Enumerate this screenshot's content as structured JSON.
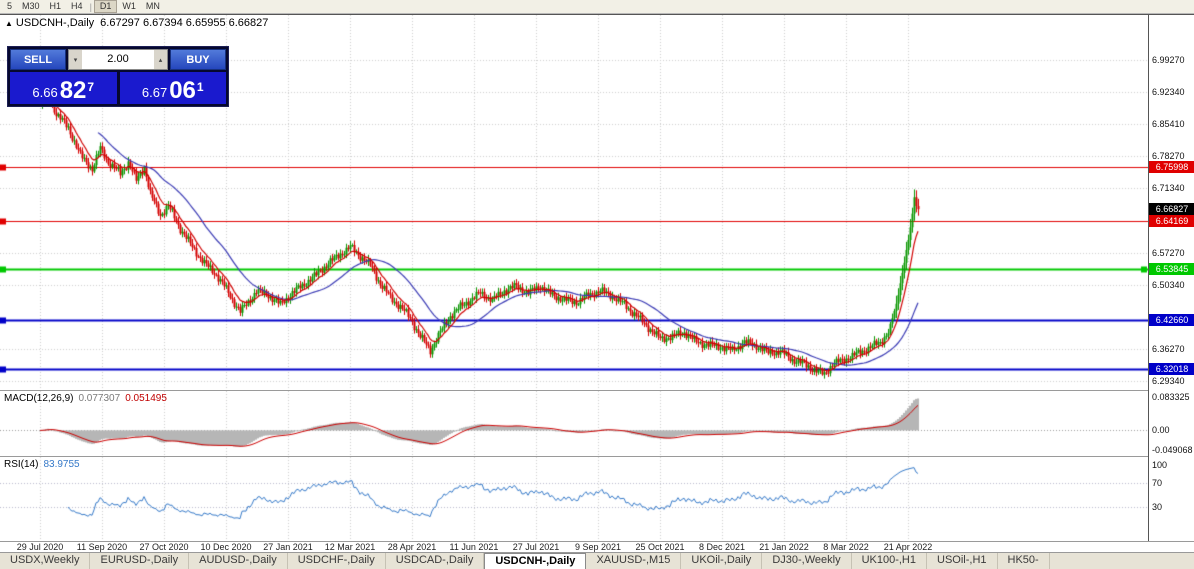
{
  "toolbar": {
    "timeframes": [
      "5",
      "M30",
      "H1",
      "H4",
      "D1",
      "W1",
      "MN"
    ],
    "active": "D1",
    "separator_index": 4
  },
  "chart": {
    "title_marker": "▲",
    "symbol": "USDCNH-,Daily",
    "ohlc_text": "6.67297 6.67394 6.65955 6.66827"
  },
  "trade_panel": {
    "sell_label": "SELL",
    "buy_label": "BUY",
    "volume": "2.00",
    "sell_price": {
      "main": "6.66",
      "big": "82",
      "sup": "7"
    },
    "buy_price": {
      "main": "6.67",
      "big": "06",
      "sup": "1"
    }
  },
  "price_axis": {
    "ticks": [
      "6.99270",
      "6.92340",
      "6.85410",
      "6.78270",
      "6.71340",
      "6.57270",
      "6.50340",
      "6.36270",
      "6.29340"
    ]
  },
  "levels": [
    {
      "price": 6.75998,
      "label": "6.75998",
      "color": "#e00000",
      "width": 1,
      "right_marker": false
    },
    {
      "price": 6.64169,
      "label": "6.64169",
      "color": "#e00000",
      "width": 1,
      "right_marker": false
    },
    {
      "price": 6.53845,
      "label": "6.53845",
      "color": "#00c800",
      "width": 2,
      "right_marker": true
    },
    {
      "price": 6.4266,
      "label": "6.42660",
      "color": "#0000c8",
      "width": 2,
      "right_marker": false
    },
    {
      "price": 6.32018,
      "label": "6.32018",
      "color": "#0000c8",
      "width": 2,
      "right_marker": false
    }
  ],
  "current_price": {
    "value": 6.66827,
    "label": "6.66827",
    "bg": "#000000"
  },
  "macd_panel": {
    "label": "MACD(12,26,9)",
    "value_main": "0.077307",
    "value_signal": "0.051495",
    "axis_labels": [
      "0.083325",
      "0.00",
      "-0.049068"
    ]
  },
  "rsi_panel": {
    "label": "RSI(14)",
    "value": "83.9755",
    "axis_labels": [
      "100",
      "70",
      "30"
    ],
    "levels": [
      70,
      30
    ]
  },
  "date_axis": {
    "labels": [
      "29 Jul 2020",
      "11 Sep 2020",
      "27 Oct 2020",
      "10 Dec 2020",
      "27 Jan 2021",
      "12 Mar 2021",
      "28 Apr 2021",
      "11 Jun 2021",
      "27 Jul 2021",
      "9 Sep 2021",
      "25 Oct 2021",
      "8 Dec 2021",
      "21 Jan 2022",
      "8 Mar 2022",
      "21 Apr 2022"
    ]
  },
  "tabs": {
    "items": [
      "USDX,Weekly",
      "EURUSD-,Daily",
      "AUDUSD-,Daily",
      "USDCHF-,Daily",
      "USDCAD-,Daily",
      "USDCNH-,Daily",
      "XAUUSD-,M15",
      "UKOil-,Daily",
      "DJ30-,Weekly",
      "UK100-,H1",
      "USOil-,H1",
      "HK50-"
    ],
    "active": "USDCNH-,Daily"
  },
  "colors": {
    "up": "#0a9600",
    "down": "#d40000",
    "grid": "#cdcdcd",
    "ma_fast": "#d00000",
    "ma_slow": "#3a3ab4",
    "macd_hist": "#b6b6b6",
    "macd_signal": "#cc0000",
    "zero_line": "#999999",
    "rsi_line": "#3579c8",
    "rsi_level": "#b8b8cc"
  },
  "chart_data": {
    "type": "candlestick",
    "symbol": "USDCNH",
    "timeframe": "Daily",
    "x_range": {
      "start": "29 Jul 2020",
      "end": "21 Apr 2022"
    },
    "price_top": 7.0907,
    "price_bottom": 6.2738,
    "bars": 440,
    "bar_start_x": 40,
    "bar_spacing": 2,
    "tick_every": 31,
    "close_anchors": [
      [
        0,
        6.895
      ],
      [
        4,
        6.915
      ],
      [
        8,
        6.875
      ],
      [
        14,
        6.845
      ],
      [
        20,
        6.785
      ],
      [
        26,
        6.755
      ],
      [
        30,
        6.8
      ],
      [
        34,
        6.77
      ],
      [
        40,
        6.745
      ],
      [
        44,
        6.77
      ],
      [
        48,
        6.73
      ],
      [
        52,
        6.76
      ],
      [
        55,
        6.7
      ],
      [
        60,
        6.655
      ],
      [
        64,
        6.675
      ],
      [
        70,
        6.625
      ],
      [
        76,
        6.585
      ],
      [
        82,
        6.55
      ],
      [
        88,
        6.525
      ],
      [
        92,
        6.5
      ],
      [
        96,
        6.47
      ],
      [
        100,
        6.445
      ],
      [
        104,
        6.465
      ],
      [
        108,
        6.49
      ],
      [
        114,
        6.48
      ],
      [
        120,
        6.46
      ],
      [
        126,
        6.485
      ],
      [
        132,
        6.505
      ],
      [
        138,
        6.525
      ],
      [
        144,
        6.55
      ],
      [
        150,
        6.57
      ],
      [
        155,
        6.585
      ],
      [
        160,
        6.565
      ],
      [
        165,
        6.545
      ],
      [
        170,
        6.505
      ],
      [
        175,
        6.475
      ],
      [
        180,
        6.455
      ],
      [
        185,
        6.43
      ],
      [
        190,
        6.39
      ],
      [
        195,
        6.36
      ],
      [
        200,
        6.4
      ],
      [
        205,
        6.435
      ],
      [
        210,
        6.455
      ],
      [
        215,
        6.47
      ],
      [
        220,
        6.485
      ],
      [
        226,
        6.47
      ],
      [
        232,
        6.49
      ],
      [
        238,
        6.5
      ],
      [
        244,
        6.485
      ],
      [
        250,
        6.5
      ],
      [
        256,
        6.48
      ],
      [
        262,
        6.47
      ],
      [
        268,
        6.465
      ],
      [
        274,
        6.48
      ],
      [
        280,
        6.49
      ],
      [
        286,
        6.478
      ],
      [
        292,
        6.46
      ],
      [
        298,
        6.435
      ],
      [
        304,
        6.41
      ],
      [
        310,
        6.385
      ],
      [
        316,
        6.39
      ],
      [
        322,
        6.4
      ],
      [
        328,
        6.378
      ],
      [
        334,
        6.372
      ],
      [
        340,
        6.368
      ],
      [
        346,
        6.36
      ],
      [
        352,
        6.378
      ],
      [
        358,
        6.37
      ],
      [
        364,
        6.355
      ],
      [
        370,
        6.358
      ],
      [
        376,
        6.34
      ],
      [
        382,
        6.33
      ],
      [
        388,
        6.315
      ],
      [
        392,
        6.308
      ],
      [
        396,
        6.33
      ],
      [
        402,
        6.34
      ],
      [
        408,
        6.352
      ],
      [
        414,
        6.365
      ],
      [
        420,
        6.378
      ],
      [
        424,
        6.4
      ],
      [
        428,
        6.46
      ],
      [
        431,
        6.53
      ],
      [
        434,
        6.6
      ],
      [
        436,
        6.655
      ],
      [
        437,
        6.695
      ],
      [
        438,
        6.675
      ],
      [
        439,
        6.668
      ]
    ],
    "macd_scale": {
      "top": 0.098,
      "bottom": -0.0637
    },
    "indicators": {
      "ma_fast": {
        "type": "ema",
        "period": 9
      },
      "ma_slow": {
        "type": "sma",
        "period": 30
      },
      "macd": [
        12,
        26,
        9
      ],
      "rsi": 14
    }
  }
}
